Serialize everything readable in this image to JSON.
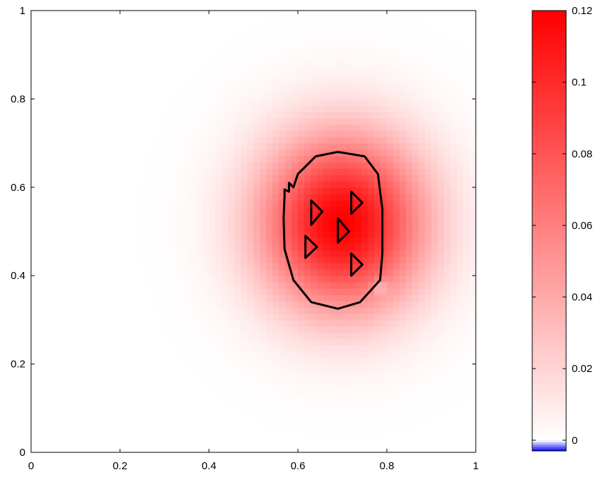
{
  "chart_data": [
    {
      "type": "heatmap",
      "title": "",
      "xlabel": "",
      "ylabel": "",
      "xlim": [
        0,
        1
      ],
      "ylim": [
        0,
        1
      ],
      "xticks": [
        0,
        0.2,
        0.4,
        0.6,
        0.8,
        1
      ],
      "yticks": [
        0,
        0.2,
        0.4,
        0.6,
        0.8,
        1
      ],
      "xtick_labels": [
        "0",
        "0.2",
        "0.4",
        "0.6",
        "0.8",
        "1"
      ],
      "ytick_labels": [
        "0",
        "0.2",
        "0.4",
        "0.6",
        "0.8",
        "1"
      ],
      "grid": false,
      "field": {
        "peak_value": 0.12,
        "peak_center": [
          0.7,
          0.52
        ],
        "spread_x": 0.13,
        "spread_y": 0.14,
        "negative_spot": {
          "center": [
            0.785,
            0.375
          ],
          "value": -0.003
        }
      },
      "outer_boundary": [
        [
          0.6,
          0.63
        ],
        [
          0.64,
          0.67
        ],
        [
          0.69,
          0.68
        ],
        [
          0.75,
          0.67
        ],
        [
          0.78,
          0.63
        ],
        [
          0.79,
          0.55
        ],
        [
          0.79,
          0.45
        ],
        [
          0.785,
          0.39
        ],
        [
          0.74,
          0.34
        ],
        [
          0.69,
          0.325
        ],
        [
          0.63,
          0.34
        ],
        [
          0.59,
          0.39
        ],
        [
          0.57,
          0.46
        ],
        [
          0.568,
          0.53
        ],
        [
          0.57,
          0.58
        ],
        [
          0.57,
          0.595
        ],
        [
          0.58,
          0.59
        ],
        [
          0.58,
          0.61
        ],
        [
          0.59,
          0.6
        ],
        [
          0.6,
          0.63
        ]
      ],
      "inclusions": [
        {
          "points": [
            [
              0.63,
              0.57
            ],
            [
              0.655,
              0.545
            ],
            [
              0.63,
              0.515
            ]
          ]
        },
        {
          "points": [
            [
              0.72,
              0.59
            ],
            [
              0.745,
              0.565
            ],
            [
              0.72,
              0.54
            ]
          ]
        },
        {
          "points": [
            [
              0.69,
              0.53
            ],
            [
              0.715,
              0.5
            ],
            [
              0.69,
              0.475
            ]
          ]
        },
        {
          "points": [
            [
              0.617,
              0.49
            ],
            [
              0.643,
              0.465
            ],
            [
              0.617,
              0.44
            ]
          ]
        },
        {
          "points": [
            [
              0.72,
              0.45
            ],
            [
              0.745,
              0.425
            ],
            [
              0.72,
              0.4
            ]
          ]
        }
      ]
    },
    {
      "type": "colorbar",
      "range": [
        -0.003,
        0.12
      ],
      "ticks": [
        0,
        0.02,
        0.04,
        0.06,
        0.08,
        0.1,
        0.12
      ],
      "tick_labels": [
        "0",
        "0.02",
        "0.04",
        "0.06",
        "0.08",
        "0.1",
        "0.12"
      ],
      "colormap": {
        "negative": "#0000ff",
        "zero": "#ffffff",
        "max": "#ff0000"
      }
    }
  ]
}
